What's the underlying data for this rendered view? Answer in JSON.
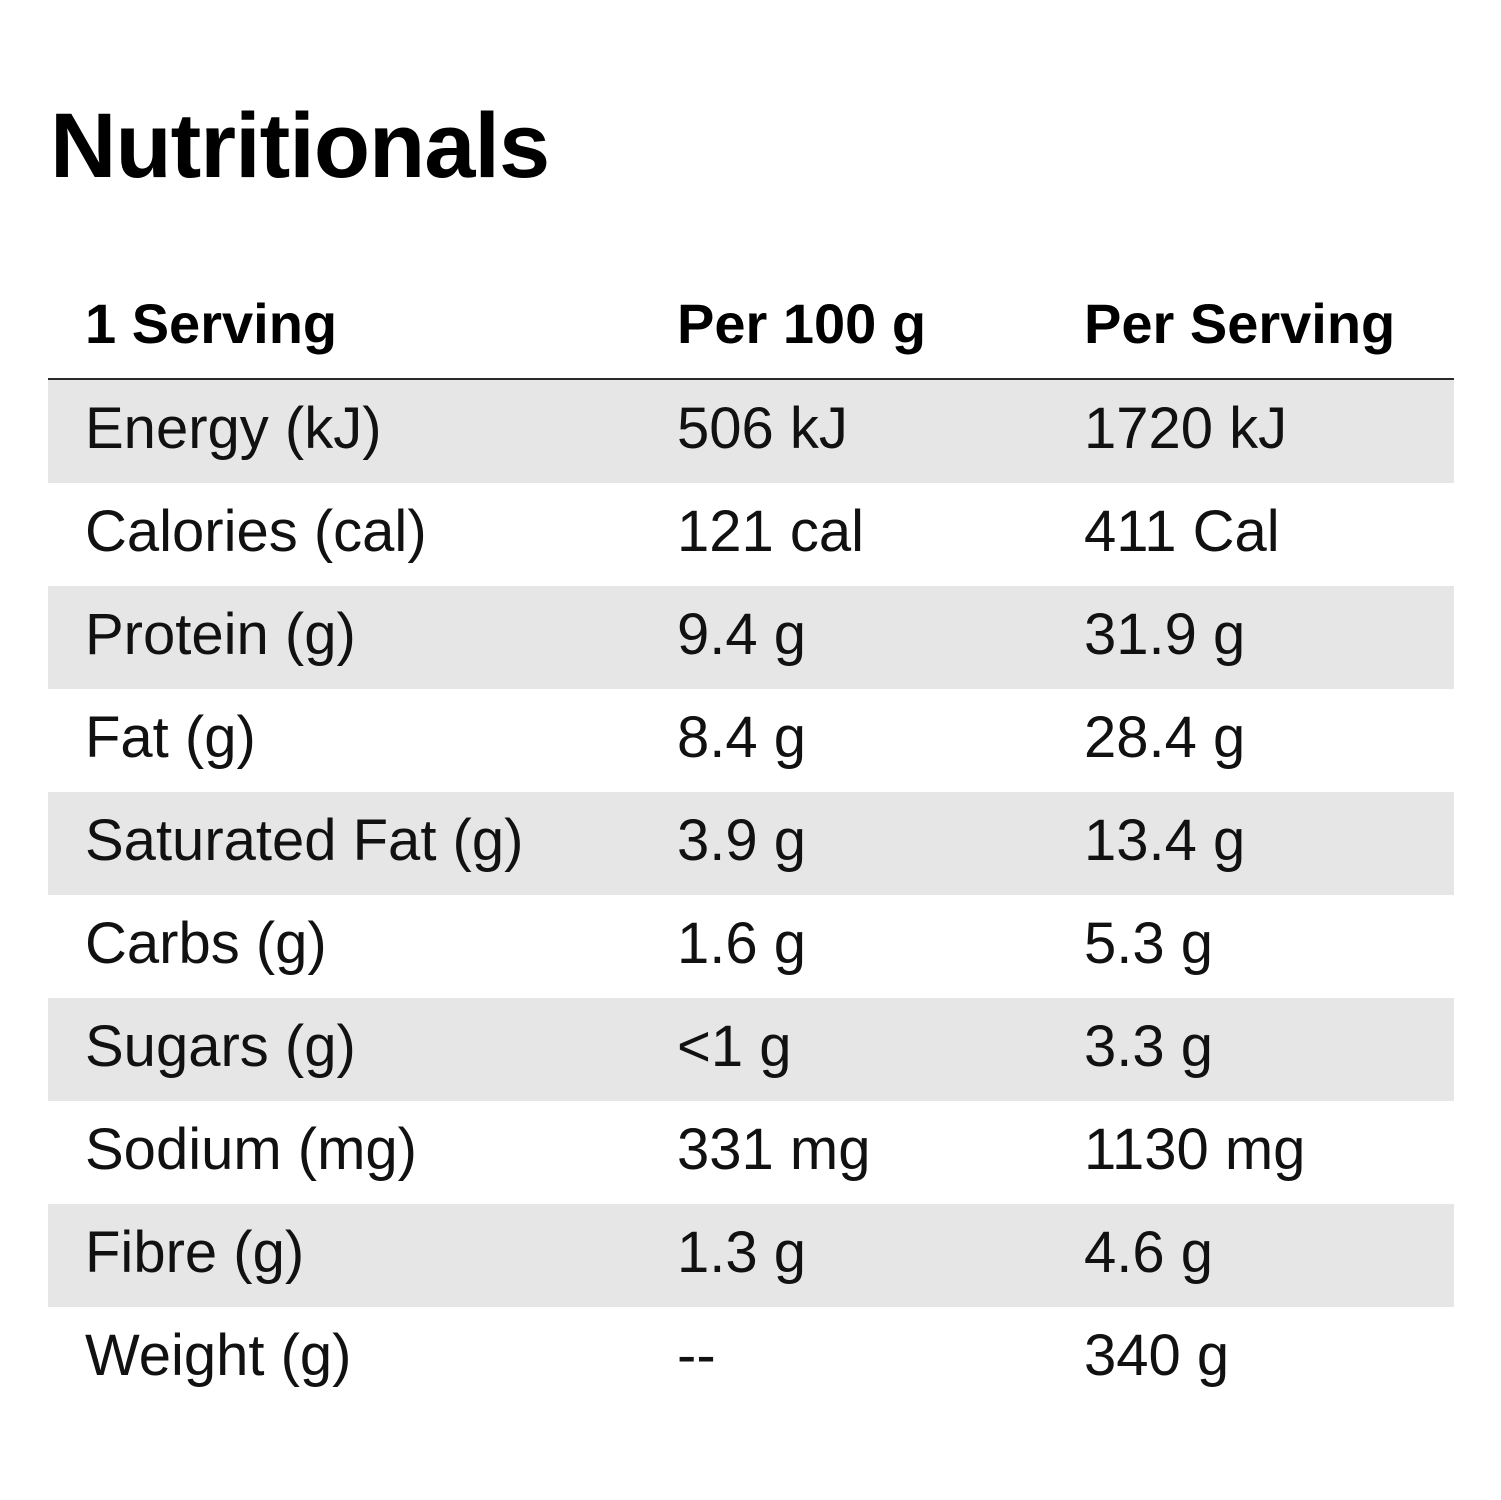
{
  "title": "Nutritionals",
  "table": {
    "headers": [
      "1 Serving",
      "Per 100 g",
      "Per Serving"
    ],
    "rows": [
      {
        "label": "Energy (kJ)",
        "per_100g": "506 kJ",
        "per_serving": "1720 kJ"
      },
      {
        "label": "Calories (cal)",
        "per_100g": "121 cal",
        "per_serving": "411 Cal"
      },
      {
        "label": "Protein (g)",
        "per_100g": "9.4 g",
        "per_serving": "31.9 g"
      },
      {
        "label": "Fat (g)",
        "per_100g": "8.4 g",
        "per_serving": "28.4 g"
      },
      {
        "label": "Saturated Fat (g)",
        "per_100g": "3.9 g",
        "per_serving": "13.4 g"
      },
      {
        "label": "Carbs (g)",
        "per_100g": "1.6 g",
        "per_serving": "5.3 g"
      },
      {
        "label": "Sugars (g)",
        "per_100g": "<1 g",
        "per_serving": "3.3 g"
      },
      {
        "label": "Sodium (mg)",
        "per_100g": "331 mg",
        "per_serving": "1130 mg"
      },
      {
        "label": "Fibre (g)",
        "per_100g": "1.3 g",
        "per_serving": "4.6 g"
      },
      {
        "label": "Weight (g)",
        "per_100g": "--",
        "per_serving": "340 g"
      }
    ]
  },
  "colors": {
    "shaded_row": "#e6e6e6",
    "header_rule": "#2a2a2a",
    "text": "#111111"
  }
}
